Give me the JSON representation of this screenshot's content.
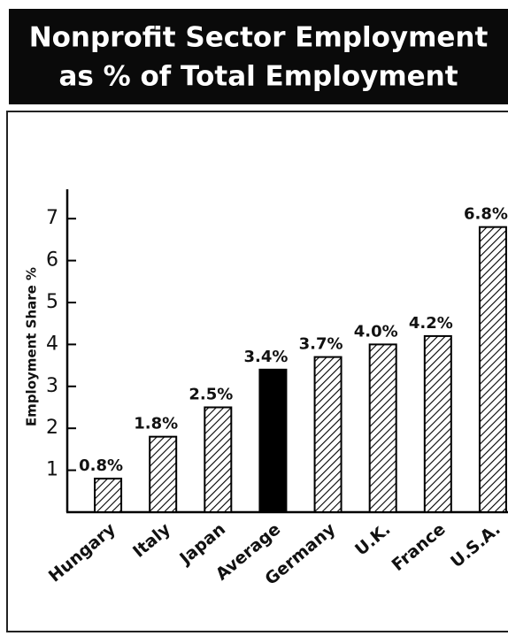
{
  "chart_data": {
    "type": "bar",
    "title": [
      "Nonprofit Sector Employment",
      "as % of Total Employment"
    ],
    "y_label": "Employment Share %",
    "categories": [
      "Hungary",
      "Italy",
      "Japan",
      "Average",
      "Germany",
      "U.K.",
      "France",
      "U.S.A."
    ],
    "values": [
      0.8,
      1.8,
      2.5,
      3.4,
      3.7,
      4.0,
      4.2,
      6.8
    ],
    "value_labels": [
      "0.8%",
      "1.8%",
      "2.5%",
      "3.4%",
      "3.7%",
      "4.0%",
      "4.2%",
      "6.8%"
    ],
    "colors": [
      "hatch",
      "hatch",
      "hatch",
      "#000000",
      "hatch",
      "hatch",
      "hatch",
      "hatch"
    ],
    "ylim": [
      0,
      7.7
    ],
    "yticks": [
      1,
      2,
      3,
      4,
      5,
      6,
      7
    ]
  }
}
